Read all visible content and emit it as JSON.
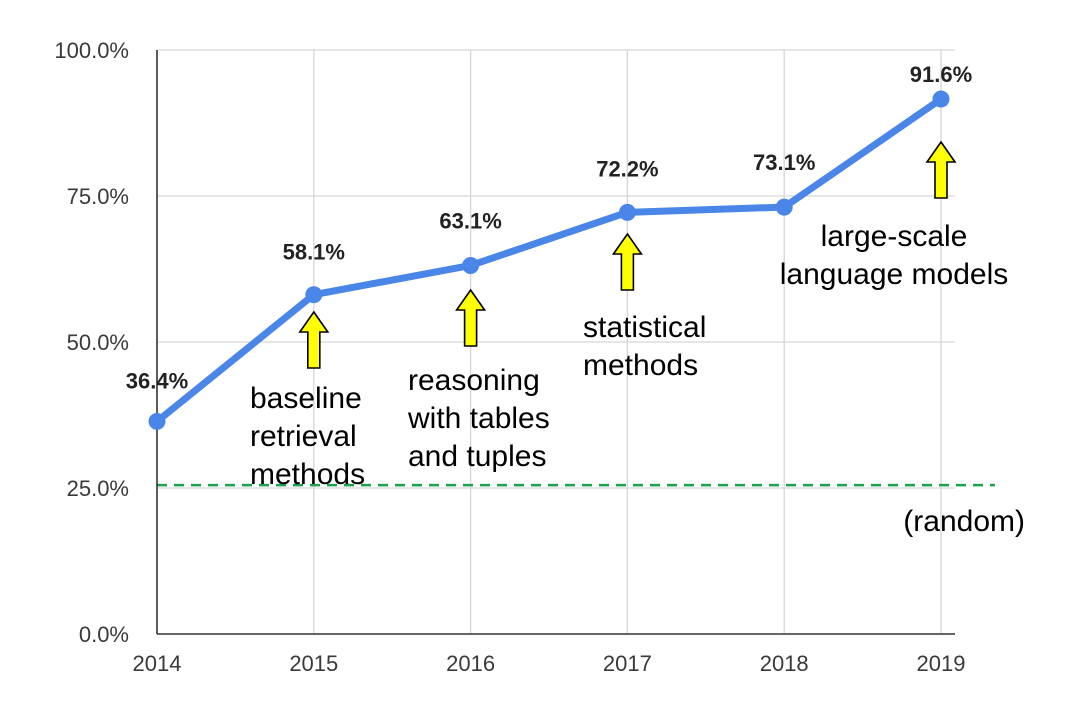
{
  "chart_data": {
    "type": "line",
    "x": [
      "2014",
      "2015",
      "2016",
      "2017",
      "2018",
      "2019"
    ],
    "series": [
      {
        "values": [
          36.4,
          58.1,
          63.1,
          72.2,
          73.1,
          91.6
        ]
      }
    ],
    "data_labels": [
      "36.4%",
      "58.1%",
      "63.1%",
      "72.2%",
      "73.1%",
      "91.6%"
    ],
    "ylim": [
      0,
      100
    ],
    "y_ticks": [
      {
        "value": 0,
        "label": "0.0%"
      },
      {
        "value": 25,
        "label": "25.0%"
      },
      {
        "value": 50,
        "label": "50.0%"
      },
      {
        "value": 75,
        "label": "75.0%"
      },
      {
        "value": 100,
        "label": "100.0%"
      }
    ],
    "grid": true,
    "reference_line": {
      "value": 25.5,
      "label": "(random)",
      "color": "#1aa34a",
      "style": "dashed"
    },
    "line_color": "#4a86e8",
    "annotations": [
      {
        "x": "2015",
        "lines": [
          "baseline",
          "retrieval",
          "methods"
        ]
      },
      {
        "x": "2016",
        "lines": [
          "reasoning",
          "with tables",
          "and tuples"
        ]
      },
      {
        "x": "2017",
        "lines": [
          "statistical",
          "methods"
        ]
      },
      {
        "x": "2019",
        "lines": [
          "large-scale",
          "language models"
        ]
      }
    ],
    "arrow_color": "#ffff00"
  }
}
